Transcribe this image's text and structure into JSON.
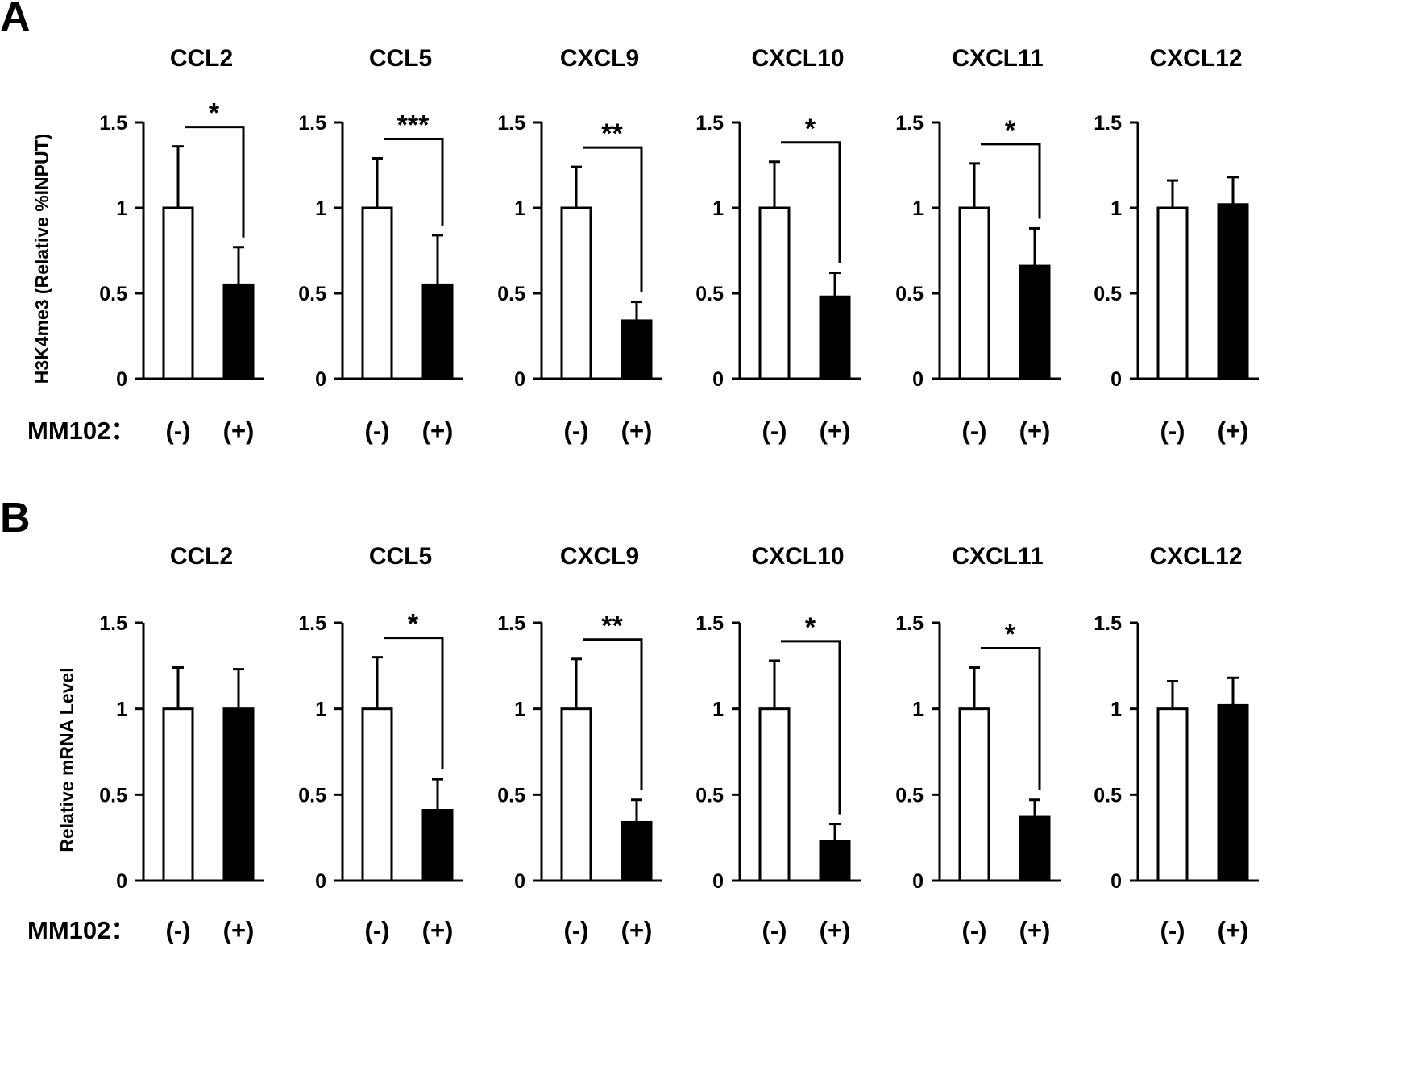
{
  "colors": {
    "control_fill": "#ffffff",
    "treated_fill": "#000000",
    "stroke": "#000000"
  },
  "chart_data": [
    {
      "panel": "A",
      "type": "bar",
      "ylabel": "H3K4me3 (Relative %INPUT)",
      "condition_label": "MM102：",
      "categories": [
        "(-)",
        "(+)"
      ],
      "ylim": [
        0,
        1.5
      ],
      "yticks": [
        "0",
        "0.5",
        "1",
        "1.5"
      ],
      "charts": [
        {
          "title": "CCL2",
          "values": [
            1.0,
            0.55
          ],
          "errors": [
            0.36,
            0.22
          ],
          "sig": "*"
        },
        {
          "title": "CCL5",
          "values": [
            1.0,
            0.55
          ],
          "errors": [
            0.29,
            0.29
          ],
          "sig": "***"
        },
        {
          "title": "CXCL9",
          "values": [
            1.0,
            0.34
          ],
          "errors": [
            0.24,
            0.11
          ],
          "sig": "**"
        },
        {
          "title": "CXCL10",
          "values": [
            1.0,
            0.48
          ],
          "errors": [
            0.27,
            0.14
          ],
          "sig": "*"
        },
        {
          "title": "CXCL11",
          "values": [
            1.0,
            0.66
          ],
          "errors": [
            0.26,
            0.22
          ],
          "sig": "*"
        },
        {
          "title": "CXCL12",
          "values": [
            1.0,
            1.02
          ],
          "errors": [
            0.16,
            0.16
          ],
          "sig": ""
        }
      ]
    },
    {
      "panel": "B",
      "type": "bar",
      "ylabel": "Relative mRNA Level",
      "condition_label": "MM102：",
      "categories": [
        "(-)",
        "(+)"
      ],
      "ylim": [
        0,
        1.5
      ],
      "yticks": [
        "0",
        "0.5",
        "1",
        "1.5"
      ],
      "charts": [
        {
          "title": "CCL2",
          "values": [
            1.0,
            1.0
          ],
          "errors": [
            0.24,
            0.23
          ],
          "sig": ""
        },
        {
          "title": "CCL5",
          "values": [
            1.0,
            0.41
          ],
          "errors": [
            0.3,
            0.18
          ],
          "sig": "*"
        },
        {
          "title": "CXCL9",
          "values": [
            1.0,
            0.34
          ],
          "errors": [
            0.29,
            0.13
          ],
          "sig": "**"
        },
        {
          "title": "CXCL10",
          "values": [
            1.0,
            0.23
          ],
          "errors": [
            0.28,
            0.1
          ],
          "sig": "*"
        },
        {
          "title": "CXCL11",
          "values": [
            1.0,
            0.37
          ],
          "errors": [
            0.24,
            0.1
          ],
          "sig": "*"
        },
        {
          "title": "CXCL12",
          "values": [
            1.0,
            1.02
          ],
          "errors": [
            0.16,
            0.16
          ],
          "sig": ""
        }
      ]
    }
  ]
}
